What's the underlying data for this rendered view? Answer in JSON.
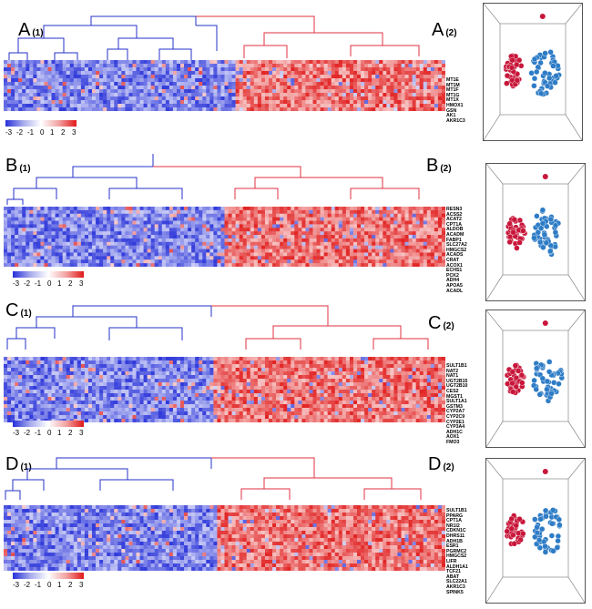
{
  "colors": {
    "low": "#2630d8",
    "mid": "#ffffff",
    "high": "#e01818",
    "blue_dot": "#2e7cc6",
    "red_dot": "#c8163a"
  },
  "legend": {
    "ticks": [
      "-3",
      "-2",
      "-1",
      "0",
      "1",
      "2",
      "3"
    ]
  },
  "panels": [
    {
      "id": "A",
      "label_left": "A",
      "sub_left": "(1)",
      "label_right": "A",
      "sub_right": "(2)",
      "genes": [
        "MT1E",
        "MT1M",
        "MT1F",
        "MT1G",
        "MT1X",
        "HMOX1",
        "GSN",
        "AK1",
        "AKR1C3"
      ]
    },
    {
      "id": "B",
      "label_left": "B",
      "sub_left": "(1)",
      "label_right": "B",
      "sub_right": "(2)",
      "genes": [
        "RESN3",
        "ACSS2",
        "ACAT2",
        "CPT1A",
        "ALDOB",
        "ACADM",
        "FABP1",
        "SLC27A2",
        "HMGCS2",
        "ACADS",
        "CRAT",
        "ACOX1",
        "ECHS1",
        "PCK2",
        "ADH4",
        "APOA5",
        "ACADL"
      ]
    },
    {
      "id": "C",
      "label_left": "C",
      "sub_left": "(1)",
      "label_right": "C",
      "sub_right": "(2)",
      "genes": [
        "SULT1B1",
        "NAT2",
        "NAT1",
        "UGT2B15",
        "UGT2B10",
        "CES2",
        "MGST1",
        "SULT1A1",
        "GSTM3",
        "CYP2A7",
        "CYP2C9",
        "CYP2E1",
        "CYP3A4",
        "ADH1C",
        "AOX1",
        "FMO3"
      ]
    },
    {
      "id": "D",
      "label_left": "D",
      "sub_left": "(1)",
      "label_right": "D",
      "sub_right": "(2)",
      "genes": [
        "SULT1B1",
        "PPARG",
        "CPT1A",
        "NR1I2",
        "CDKN1C",
        "DHRS11",
        "ADH1B",
        "ESR1",
        "PGRMC2",
        "HMGCS2",
        "LIFR",
        "ALDH1A1",
        "TCF21",
        "ABAT",
        "SLC22A1",
        "AKR1C3",
        "SPINK5"
      ]
    }
  ]
}
